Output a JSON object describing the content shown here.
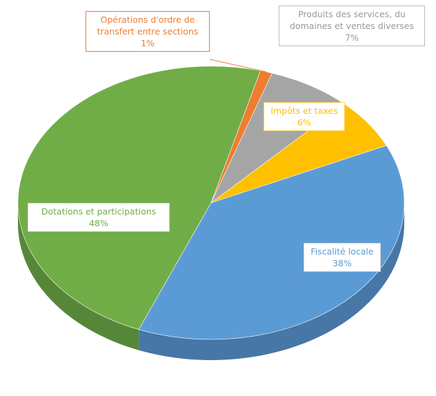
{
  "chart_data": {
    "type": "pie",
    "title": "",
    "legend": "none",
    "slices": [
      {
        "label_line1": "Fiscalité locale",
        "label_line2": "",
        "pct_text": "38%",
        "value": 38,
        "color": "#5b9bd5",
        "side_color": "#4677a6"
      },
      {
        "label_line1": "Dotations et participations",
        "label_line2": "",
        "pct_text": "48%",
        "value": 48,
        "color": "#70ad47",
        "side_color": "#568739"
      },
      {
        "label_line1": "Opérations d'ordre de",
        "label_line2": "transfert entre sections",
        "pct_text": "1%",
        "value": 1,
        "color": "#ed7d31",
        "side_color": "#b65e23"
      },
      {
        "label_line1": "Produits des services, du",
        "label_line2": "domaines et ventes diverses",
        "pct_text": "7%",
        "value": 7,
        "color": "#a5a5a5",
        "side_color": "#7f7f7f"
      },
      {
        "label_line1": "Impôts et taxes",
        "label_line2": "",
        "pct_text": "6%",
        "value": 6,
        "color": "#ffc000",
        "side_color": "#c79500"
      }
    ]
  }
}
